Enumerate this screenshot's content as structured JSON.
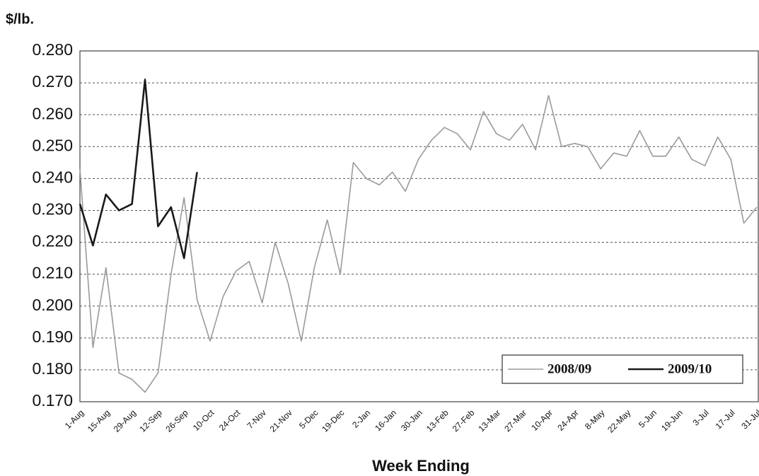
{
  "chart_data": {
    "type": "line",
    "y_label": "$/lb.",
    "x_label": "Week Ending",
    "categories": [
      "1-Aug",
      null,
      "15-Aug",
      null,
      "29-Aug",
      null,
      "12-Sep",
      null,
      "26-Sep",
      null,
      "10-Oct",
      null,
      "24-Oct",
      null,
      "7-Nov",
      null,
      "21-Nov",
      null,
      "5-Dec",
      null,
      "19-Dec",
      null,
      "2-Jan",
      null,
      "16-Jan",
      null,
      "30-Jan",
      null,
      "13-Feb",
      null,
      "27-Feb",
      null,
      "13-Mar",
      null,
      "27-Mar",
      null,
      "10-Apr",
      null,
      "24-Apr",
      null,
      "8-May",
      null,
      "22-May",
      null,
      "5-Jun",
      null,
      "19-Jun",
      null,
      "3-Jul",
      null,
      "17-Jul",
      null,
      "31-Jul"
    ],
    "series": [
      {
        "name": "2008/09",
        "color": "#9a9a9a",
        "width": 1.6,
        "values": [
          0.243,
          0.187,
          0.212,
          0.179,
          0.177,
          0.173,
          0.179,
          0.21,
          0.234,
          0.202,
          0.189,
          0.203,
          0.211,
          0.214,
          0.201,
          0.22,
          0.207,
          0.189,
          0.212,
          0.227,
          0.21,
          0.245,
          0.24,
          0.238,
          0.242,
          0.236,
          0.246,
          0.252,
          0.256,
          0.254,
          0.249,
          0.261,
          0.254,
          0.252,
          0.257,
          0.249,
          0.266,
          0.25,
          0.251,
          0.25,
          0.243,
          0.248,
          0.247,
          0.255,
          0.247,
          0.247,
          0.253,
          0.246,
          0.244,
          0.253,
          0.246,
          0.226,
          0.231
        ]
      },
      {
        "name": "2009/10",
        "color": "#1a1a1a",
        "width": 2.6,
        "values": [
          0.232,
          0.219,
          0.235,
          0.23,
          0.232,
          0.271,
          0.225,
          0.231,
          0.215,
          0.242,
          null,
          null,
          null,
          null,
          null,
          null,
          null,
          null,
          null,
          null,
          null,
          null,
          null,
          null,
          null,
          null,
          null,
          null,
          null,
          null,
          null,
          null,
          null,
          null,
          null,
          null,
          null,
          null,
          null,
          null,
          null,
          null,
          null,
          null,
          null,
          null,
          null,
          null,
          null,
          null,
          null,
          null,
          null
        ]
      }
    ],
    "ylim": [
      0.17,
      0.28
    ],
    "yticks": [
      {
        "value": 0.17,
        "label": "0.170"
      },
      {
        "value": 0.18,
        "label": "0.180"
      },
      {
        "value": 0.19,
        "label": "0.190"
      },
      {
        "value": 0.2,
        "label": "0.200"
      },
      {
        "value": 0.21,
        "label": "0.210"
      },
      {
        "value": 0.22,
        "label": "0.220"
      },
      {
        "value": 0.23,
        "label": "0.230"
      },
      {
        "value": 0.24,
        "label": "0.240"
      },
      {
        "value": 0.25,
        "label": "0.250"
      },
      {
        "value": 0.26,
        "label": "0.260"
      },
      {
        "value": 0.27,
        "label": "0.270"
      },
      {
        "value": 0.28,
        "label": "0.280"
      }
    ],
    "grid": true,
    "legend": "lower right"
  }
}
